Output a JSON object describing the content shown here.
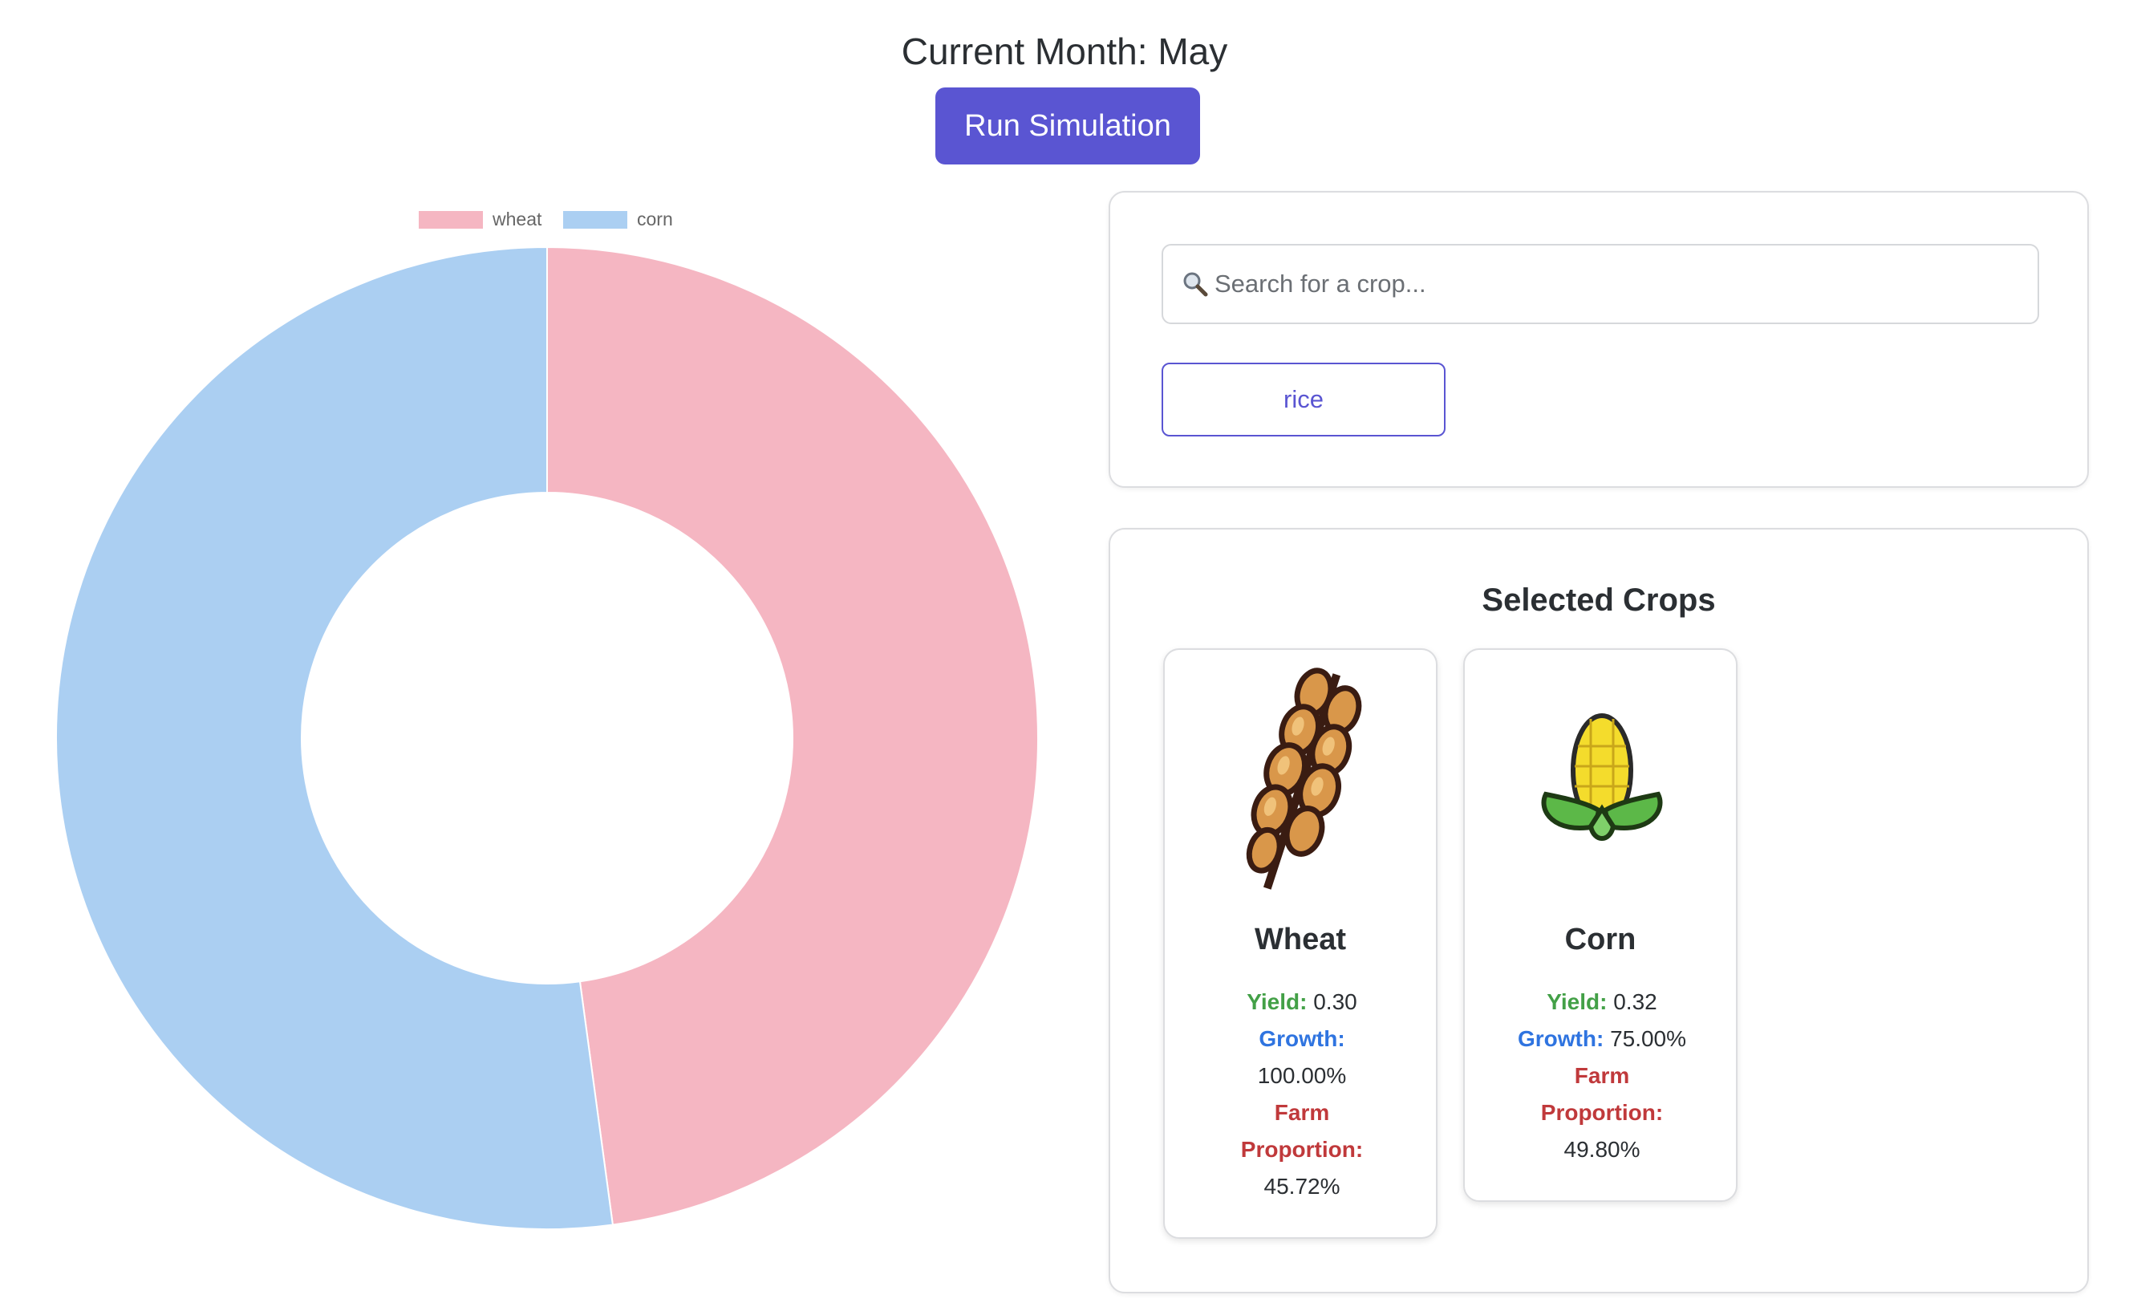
{
  "header": {
    "month_title": "Current Month: May",
    "run_button_label": "Run Simulation"
  },
  "chart_data": {
    "type": "pie",
    "variant": "doughnut",
    "legend": [
      "wheat",
      "corn"
    ],
    "legend_position": "top",
    "series": [
      {
        "name": "wheat",
        "value": 45.72,
        "color": "#f5b6c2"
      },
      {
        "name": "corn",
        "value": 49.8,
        "color": "#abcff2"
      }
    ]
  },
  "search": {
    "placeholder": "Search for a crop...",
    "icon": "magnifier-icon",
    "suggestions": [
      "rice"
    ]
  },
  "selected": {
    "title": "Selected Crops",
    "crops": [
      {
        "name": "Wheat",
        "icon": "wheat-icon",
        "yield_label": "Yield:",
        "yield_value": "0.30",
        "growth_label": "Growth:",
        "growth_value": "100.00%",
        "proportion_label": "Farm Proportion:",
        "proportion_value": "45.72%"
      },
      {
        "name": "Corn",
        "icon": "corn-icon",
        "yield_label": "Yield:",
        "yield_value": "0.32",
        "growth_label": "Growth:",
        "growth_value": "75.00%",
        "proportion_label": "Farm Proportion:",
        "proportion_value": "49.80%"
      }
    ]
  },
  "colors": {
    "accent": "#5a55d2",
    "yield": "#43a047",
    "growth": "#2f74e0",
    "proportion": "#c0393b"
  }
}
